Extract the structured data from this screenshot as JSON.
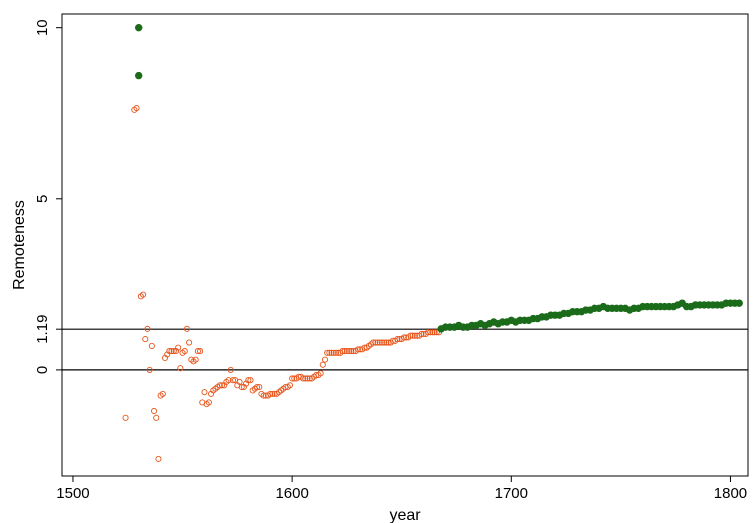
{
  "chart_data": {
    "type": "scatter",
    "title": "",
    "xlabel": "year",
    "ylabel": "Remoteness",
    "xlim": [
      1495,
      1808
    ],
    "ylim": [
      -3.1,
      10.4
    ],
    "xticks": [
      1500,
      1600,
      1700,
      1800
    ],
    "yticks": [
      {
        "value": 0,
        "label": "0"
      },
      {
        "value": 1.19,
        "label": "1.19"
      },
      {
        "value": 5,
        "label": "5"
      },
      {
        "value": 10,
        "label": "10"
      }
    ],
    "reference_lines": [
      0,
      1.19
    ],
    "grid": false,
    "legend": "none",
    "series": [
      {
        "color": "#E8561C",
        "marker": "hollow-circle",
        "points": [
          [
            1524,
            -1.4
          ],
          [
            1528,
            7.6
          ],
          [
            1529,
            7.65
          ],
          [
            1531,
            2.15
          ],
          [
            1532,
            2.2
          ],
          [
            1533,
            0.9
          ],
          [
            1534,
            1.2
          ],
          [
            1535,
            0
          ],
          [
            1536,
            0.7
          ],
          [
            1537,
            -1.2
          ],
          [
            1538,
            -1.4
          ],
          [
            1539,
            -2.6
          ],
          [
            1540,
            -0.75
          ],
          [
            1541,
            -0.7
          ],
          [
            1542,
            0.35
          ],
          [
            1543,
            0.45
          ],
          [
            1544,
            0.55
          ],
          [
            1545,
            0.55
          ],
          [
            1546,
            0.55
          ],
          [
            1547,
            0.55
          ],
          [
            1548,
            0.65
          ],
          [
            1549,
            0.05
          ],
          [
            1550,
            0.5
          ],
          [
            1551,
            0.55
          ],
          [
            1552,
            1.2
          ],
          [
            1553,
            0.8
          ],
          [
            1554,
            0.3
          ],
          [
            1555,
            0.25
          ],
          [
            1556,
            0.3
          ],
          [
            1557,
            0.55
          ],
          [
            1558,
            0.55
          ],
          [
            1559,
            -0.95
          ],
          [
            1560,
            -0.65
          ],
          [
            1561,
            -1
          ],
          [
            1562,
            -0.95
          ],
          [
            1563,
            -0.7
          ],
          [
            1564,
            -0.6
          ],
          [
            1565,
            -0.55
          ],
          [
            1566,
            -0.5
          ],
          [
            1567,
            -0.45
          ],
          [
            1568,
            -0.45
          ],
          [
            1569,
            -0.45
          ],
          [
            1570,
            -0.35
          ],
          [
            1571,
            -0.3
          ],
          [
            1572,
            0
          ],
          [
            1573,
            -0.3
          ],
          [
            1574,
            -0.3
          ],
          [
            1575,
            -0.45
          ],
          [
            1576,
            -0.35
          ],
          [
            1577,
            -0.5
          ],
          [
            1578,
            -0.5
          ],
          [
            1579,
            -0.4
          ],
          [
            1580,
            -0.3
          ],
          [
            1581,
            -0.3
          ],
          [
            1582,
            -0.6
          ],
          [
            1583,
            -0.55
          ],
          [
            1584,
            -0.5
          ],
          [
            1585,
            -0.5
          ],
          [
            1586,
            -0.7
          ],
          [
            1587,
            -0.75
          ],
          [
            1588,
            -0.75
          ],
          [
            1589,
            -0.75
          ],
          [
            1590,
            -0.7
          ],
          [
            1591,
            -0.7
          ],
          [
            1592,
            -0.7
          ],
          [
            1593,
            -0.7
          ],
          [
            1594,
            -0.65
          ],
          [
            1595,
            -0.6
          ],
          [
            1596,
            -0.55
          ],
          [
            1597,
            -0.5
          ],
          [
            1598,
            -0.5
          ],
          [
            1599,
            -0.45
          ],
          [
            1600,
            -0.25
          ],
          [
            1601,
            -0.25
          ],
          [
            1602,
            -0.25
          ],
          [
            1603,
            -0.2
          ],
          [
            1604,
            -0.2
          ],
          [
            1605,
            -0.25
          ],
          [
            1606,
            -0.25
          ],
          [
            1607,
            -0.25
          ],
          [
            1608,
            -0.25
          ],
          [
            1609,
            -0.25
          ],
          [
            1610,
            -0.2
          ],
          [
            1611,
            -0.15
          ],
          [
            1612,
            -0.15
          ],
          [
            1613,
            -0.1
          ],
          [
            1614,
            0.15
          ],
          [
            1615,
            0.3
          ],
          [
            1616,
            0.5
          ],
          [
            1617,
            0.5
          ],
          [
            1618,
            0.5
          ],
          [
            1619,
            0.5
          ],
          [
            1620,
            0.5
          ],
          [
            1621,
            0.5
          ],
          [
            1622,
            0.5
          ],
          [
            1623,
            0.55
          ],
          [
            1624,
            0.55
          ],
          [
            1625,
            0.55
          ],
          [
            1626,
            0.55
          ],
          [
            1627,
            0.55
          ],
          [
            1628,
            0.55
          ],
          [
            1629,
            0.55
          ],
          [
            1630,
            0.6
          ],
          [
            1631,
            0.6
          ],
          [
            1632,
            0.6
          ],
          [
            1633,
            0.65
          ],
          [
            1634,
            0.65
          ],
          [
            1635,
            0.7
          ],
          [
            1636,
            0.75
          ],
          [
            1637,
            0.8
          ],
          [
            1638,
            0.8
          ],
          [
            1639,
            0.8
          ],
          [
            1640,
            0.8
          ],
          [
            1641,
            0.8
          ],
          [
            1642,
            0.8
          ],
          [
            1643,
            0.8
          ],
          [
            1644,
            0.8
          ],
          [
            1645,
            0.8
          ],
          [
            1646,
            0.85
          ],
          [
            1647,
            0.85
          ],
          [
            1648,
            0.9
          ],
          [
            1649,
            0.9
          ],
          [
            1650,
            0.9
          ],
          [
            1651,
            0.95
          ],
          [
            1652,
            0.95
          ],
          [
            1653,
            0.95
          ],
          [
            1654,
            1
          ],
          [
            1655,
            1
          ],
          [
            1656,
            1
          ],
          [
            1657,
            1
          ],
          [
            1658,
            1
          ],
          [
            1659,
            1.05
          ],
          [
            1660,
            1.05
          ],
          [
            1661,
            1.05
          ],
          [
            1662,
            1.1
          ],
          [
            1663,
            1.1
          ],
          [
            1664,
            1.1
          ],
          [
            1665,
            1.1
          ],
          [
            1666,
            1.1
          ],
          [
            1667,
            1.1
          ]
        ]
      },
      {
        "color": "#1A6B1A",
        "marker": "filled-circle",
        "points": [
          [
            1530,
            10
          ],
          [
            1530,
            8.6
          ],
          [
            1668,
            1.2
          ],
          [
            1670,
            1.25
          ],
          [
            1672,
            1.25
          ],
          [
            1674,
            1.25
          ],
          [
            1676,
            1.3
          ],
          [
            1678,
            1.25
          ],
          [
            1680,
            1.25
          ],
          [
            1682,
            1.3
          ],
          [
            1684,
            1.3
          ],
          [
            1686,
            1.35
          ],
          [
            1688,
            1.3
          ],
          [
            1690,
            1.35
          ],
          [
            1692,
            1.4
          ],
          [
            1694,
            1.35
          ],
          [
            1696,
            1.4
          ],
          [
            1698,
            1.4
          ],
          [
            1700,
            1.45
          ],
          [
            1702,
            1.4
          ],
          [
            1704,
            1.45
          ],
          [
            1706,
            1.45
          ],
          [
            1708,
            1.45
          ],
          [
            1710,
            1.5
          ],
          [
            1712,
            1.5
          ],
          [
            1714,
            1.55
          ],
          [
            1716,
            1.55
          ],
          [
            1718,
            1.6
          ],
          [
            1720,
            1.6
          ],
          [
            1722,
            1.6
          ],
          [
            1724,
            1.65
          ],
          [
            1726,
            1.65
          ],
          [
            1728,
            1.7
          ],
          [
            1730,
            1.7
          ],
          [
            1732,
            1.7
          ],
          [
            1734,
            1.75
          ],
          [
            1736,
            1.75
          ],
          [
            1738,
            1.8
          ],
          [
            1740,
            1.8
          ],
          [
            1742,
            1.85
          ],
          [
            1744,
            1.8
          ],
          [
            1746,
            1.8
          ],
          [
            1748,
            1.8
          ],
          [
            1750,
            1.8
          ],
          [
            1752,
            1.8
          ],
          [
            1754,
            1.75
          ],
          [
            1756,
            1.8
          ],
          [
            1758,
            1.8
          ],
          [
            1760,
            1.85
          ],
          [
            1762,
            1.85
          ],
          [
            1764,
            1.85
          ],
          [
            1766,
            1.85
          ],
          [
            1768,
            1.85
          ],
          [
            1770,
            1.85
          ],
          [
            1772,
            1.85
          ],
          [
            1774,
            1.85
          ],
          [
            1776,
            1.9
          ],
          [
            1778,
            1.95
          ],
          [
            1780,
            1.85
          ],
          [
            1782,
            1.85
          ],
          [
            1784,
            1.9
          ],
          [
            1786,
            1.9
          ],
          [
            1788,
            1.9
          ],
          [
            1790,
            1.9
          ],
          [
            1792,
            1.9
          ],
          [
            1794,
            1.9
          ],
          [
            1796,
            1.9
          ],
          [
            1798,
            1.95
          ],
          [
            1800,
            1.95
          ],
          [
            1802,
            1.95
          ],
          [
            1804,
            1.95
          ]
        ]
      }
    ]
  }
}
